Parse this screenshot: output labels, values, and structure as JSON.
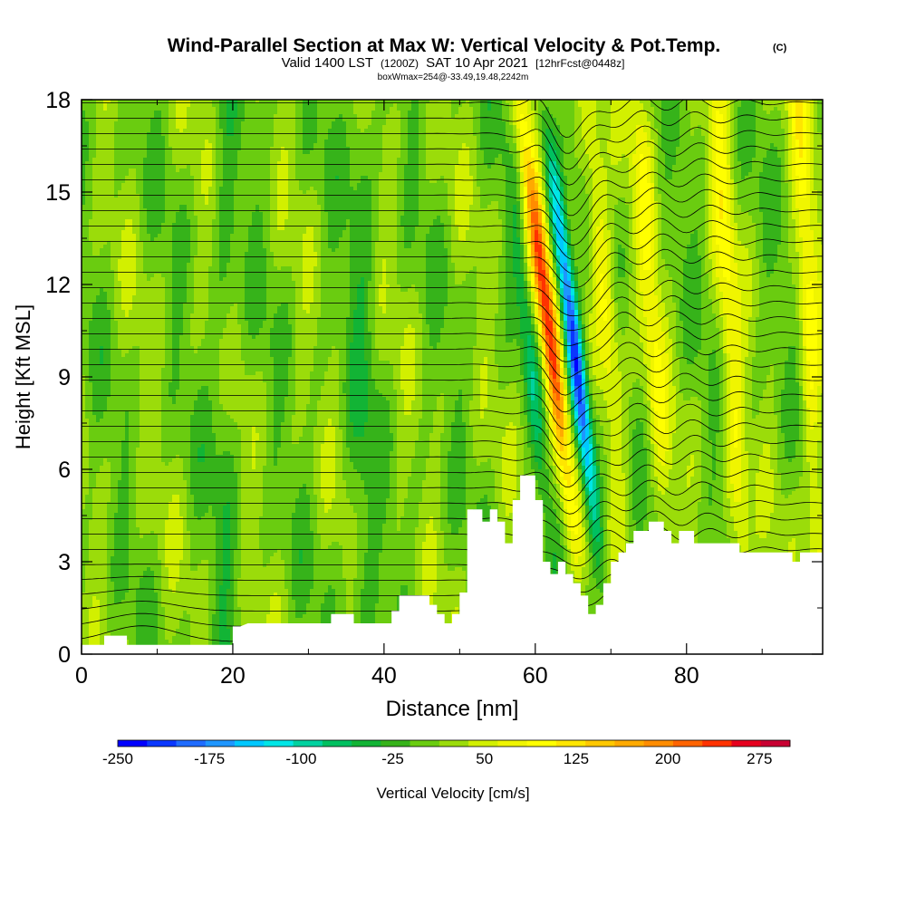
{
  "chart_data": {
    "type": "heatmap",
    "title": "Wind-Parallel Section at Max W: Vertical Velocity & Pot.Temp.",
    "title_mark": "(C)",
    "subtitle": {
      "valid_prefix": "Valid 1400 LST",
      "utc": "(1200Z)",
      "date": "SAT 10 Apr 2021",
      "forecast": "[12hrFcst@0448z]"
    },
    "info_line": "boxWmax=254@-33.49,19.48,2242m",
    "xlabel": "Distance [nm]",
    "ylabel": "Height [Kft MSL]",
    "xlim": [
      0,
      98
    ],
    "ylim": [
      0,
      18
    ],
    "x_ticks": [
      0,
      20,
      40,
      60,
      80
    ],
    "y_ticks": [
      0,
      3,
      6,
      9,
      12,
      15,
      18
    ],
    "colorbar": {
      "label": "Vertical Velocity [cm/s]",
      "tick_labels": [
        "-250",
        "-175",
        "-100",
        "-25",
        "50",
        "125",
        "200",
        "275"
      ],
      "tick_values": [
        -250,
        -175,
        -100,
        -25,
        50,
        125,
        200,
        275
      ],
      "levels": [
        -250,
        -225,
        -200,
        -175,
        -150,
        -125,
        -100,
        -75,
        -50,
        -25,
        0,
        25,
        50,
        75,
        100,
        125,
        150,
        175,
        200,
        225,
        250,
        275,
        300
      ],
      "colors": [
        "#0000ff",
        "#0a37ff",
        "#1f6cff",
        "#1e96ff",
        "#00c8ff",
        "#00e6e6",
        "#00d2a0",
        "#00c060",
        "#12b435",
        "#36b31a",
        "#6acc10",
        "#9bdc0a",
        "#d2f000",
        "#f0f500",
        "#ffff00",
        "#ffe600",
        "#ffc800",
        "#ffaa00",
        "#ff8c00",
        "#ff6400",
        "#ff3200",
        "#e6001e",
        "#c80032"
      ]
    },
    "updraft": {
      "x_center": 62.5,
      "w_max": 285
    },
    "downdraft": {
      "x_center": 65.2,
      "w_min": -250
    },
    "terrain_profile": [
      [
        0,
        0.3
      ],
      [
        3,
        0.3
      ],
      [
        3,
        0.6
      ],
      [
        6,
        0.6
      ],
      [
        6,
        0.3
      ],
      [
        20,
        0.3
      ],
      [
        20,
        0.9
      ],
      [
        21,
        0.9
      ],
      [
        22,
        1.0
      ],
      [
        25,
        1.0
      ],
      [
        32,
        1.0
      ],
      [
        33,
        1.0
      ],
      [
        33,
        1.3
      ],
      [
        36,
        1.3
      ],
      [
        36,
        1.0
      ],
      [
        41,
        1.0
      ],
      [
        41,
        1.4
      ],
      [
        42,
        1.4
      ],
      [
        42,
        1.9
      ],
      [
        46,
        1.9
      ],
      [
        46,
        1.6
      ],
      [
        47,
        1.6
      ],
      [
        47,
        1.3
      ],
      [
        48,
        1.3
      ],
      [
        48,
        1.0
      ],
      [
        49,
        1.0
      ],
      [
        49,
        1.3
      ],
      [
        50,
        1.3
      ],
      [
        50,
        2.0
      ],
      [
        51,
        2.0
      ],
      [
        51,
        4.7
      ],
      [
        53,
        4.7
      ],
      [
        53,
        4.3
      ],
      [
        54,
        4.3
      ],
      [
        54,
        4.7
      ],
      [
        55,
        4.7
      ],
      [
        55,
        4.3
      ],
      [
        56,
        4.3
      ],
      [
        56,
        3.6
      ],
      [
        57,
        3.6
      ],
      [
        57,
        5.0
      ],
      [
        58,
        5.0
      ],
      [
        58,
        5.8
      ],
      [
        60,
        5.8
      ],
      [
        60,
        5.0
      ],
      [
        61,
        5.0
      ],
      [
        61,
        3.0
      ],
      [
        62,
        3.0
      ],
      [
        62,
        2.6
      ],
      [
        63,
        2.6
      ],
      [
        63,
        3.0
      ],
      [
        64,
        3.0
      ],
      [
        64,
        2.6
      ],
      [
        65,
        2.6
      ],
      [
        65,
        2.3
      ],
      [
        66,
        2.3
      ],
      [
        66,
        1.9
      ],
      [
        67,
        1.9
      ],
      [
        67,
        1.3
      ],
      [
        68,
        1.3
      ],
      [
        68,
        1.6
      ],
      [
        69,
        1.6
      ],
      [
        69,
        2.3
      ],
      [
        70,
        2.3
      ],
      [
        70,
        3.0
      ],
      [
        71,
        3.0
      ],
      [
        71,
        3.3
      ],
      [
        72,
        3.3
      ],
      [
        72,
        3.6
      ],
      [
        73,
        3.6
      ],
      [
        73,
        4.0
      ],
      [
        75,
        4.0
      ],
      [
        75,
        4.3
      ],
      [
        77,
        4.3
      ],
      [
        77,
        4.0
      ],
      [
        78,
        4.0
      ],
      [
        78,
        3.6
      ],
      [
        79,
        3.6
      ],
      [
        79,
        4.0
      ],
      [
        81,
        4.0
      ],
      [
        81,
        3.6
      ],
      [
        87,
        3.6
      ],
      [
        87,
        3.3
      ],
      [
        88,
        3.3
      ],
      [
        88,
        3.3
      ],
      [
        90,
        3.3
      ],
      [
        94,
        3.3
      ],
      [
        94,
        3.0
      ],
      [
        95,
        3.0
      ],
      [
        95,
        3.3
      ],
      [
        98,
        3.3
      ]
    ]
  }
}
